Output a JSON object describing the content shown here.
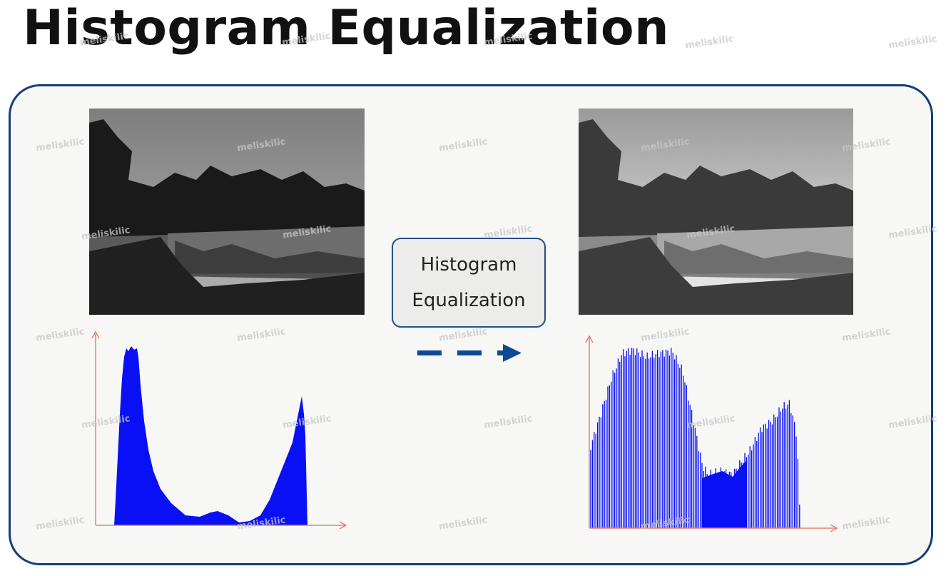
{
  "title": "Histogram Equalization",
  "process_box": {
    "line1": "Histogram",
    "line2": "Equalization"
  },
  "watermark": "meliskilic",
  "colors": {
    "panel_border": "#123f7a",
    "histogram_fill": "#0a10f5",
    "axis": "#e8806a",
    "arrow": "#0e4a94"
  },
  "icons": [
    "dashed-arrow-right-icon"
  ]
}
